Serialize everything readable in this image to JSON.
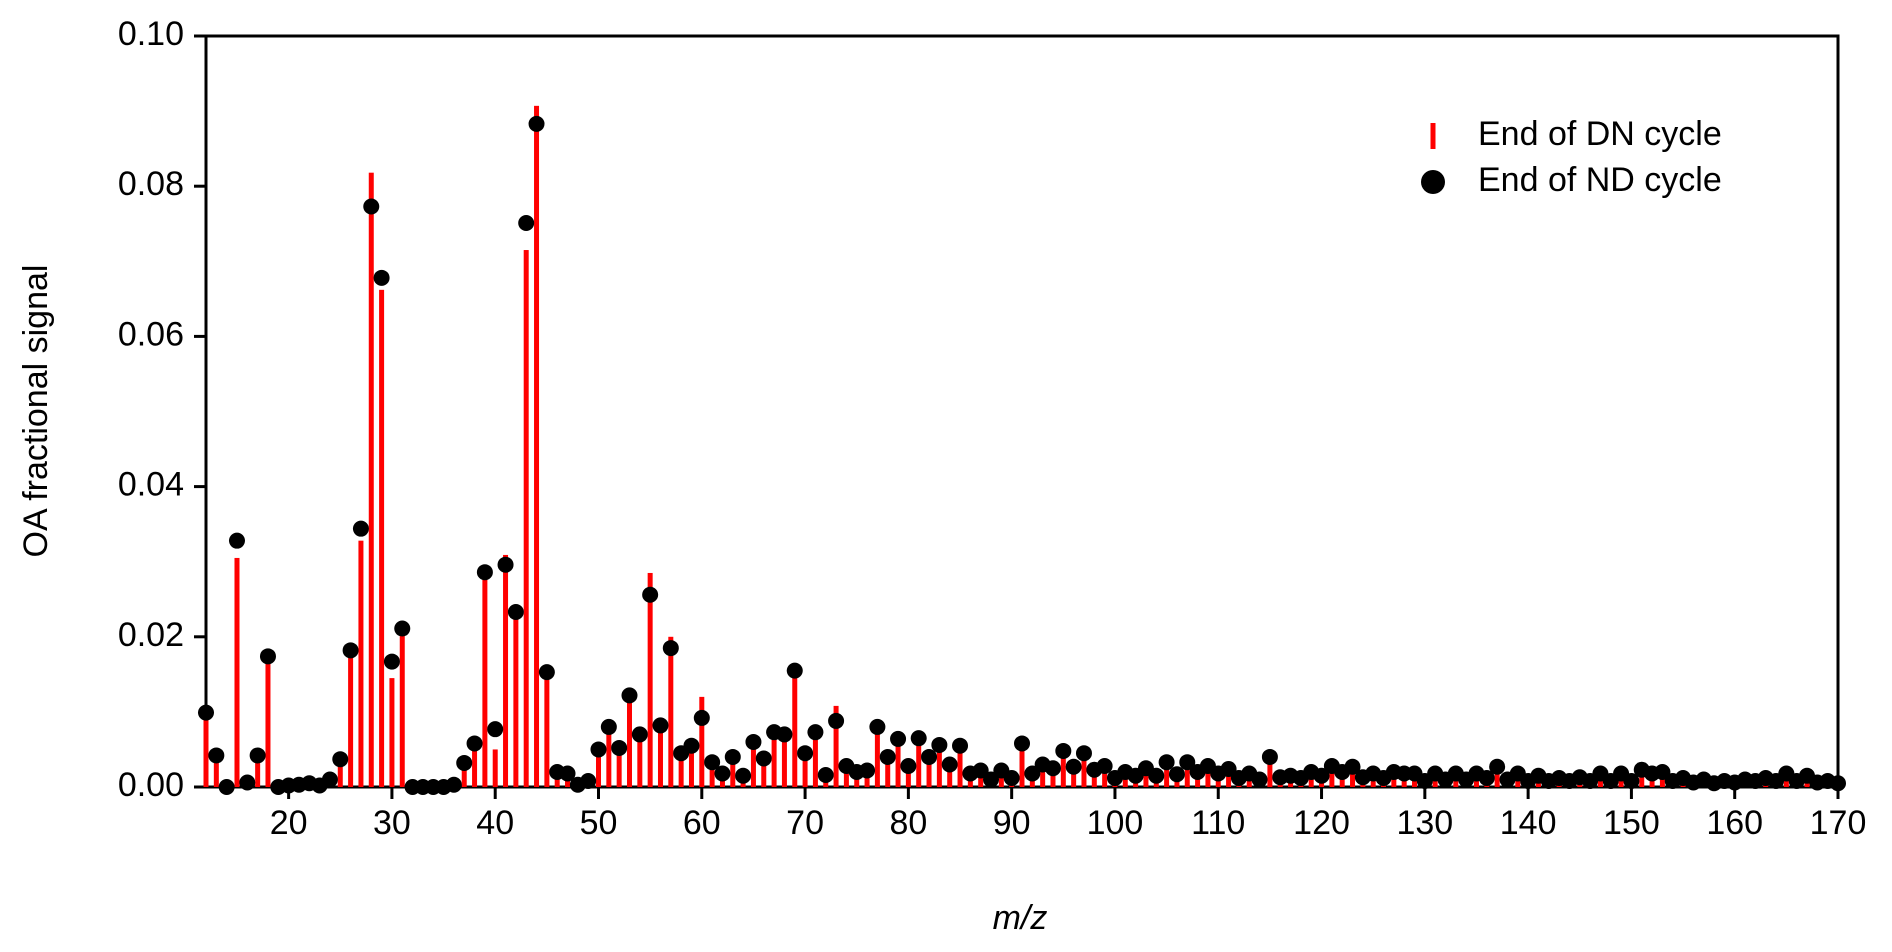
{
  "chart_data": {
    "type": "stem",
    "xlabel": "m/z",
    "ylabel": "OA fractional signal",
    "xlim": [
      12,
      170
    ],
    "ylim": [
      0,
      0.1
    ],
    "xticks": [
      20,
      30,
      40,
      50,
      60,
      70,
      80,
      90,
      100,
      110,
      120,
      130,
      140,
      150,
      160,
      170
    ],
    "yticks": [
      {
        "value": 0,
        "label": "0.00"
      },
      {
        "value": 0.02,
        "label": "0.02"
      },
      {
        "value": 0.04,
        "label": "0.04"
      },
      {
        "value": 0.06,
        "label": "0.06"
      },
      {
        "value": 0.08,
        "label": "0.08"
      },
      {
        "value": 0.1,
        "label": "0.10"
      }
    ],
    "legend": "upper right",
    "x": [
      12,
      13,
      14,
      15,
      16,
      17,
      18,
      19,
      20,
      21,
      22,
      23,
      24,
      25,
      26,
      27,
      28,
      29,
      30,
      31,
      32,
      33,
      34,
      35,
      36,
      37,
      38,
      39,
      40,
      41,
      42,
      43,
      44,
      45,
      46,
      47,
      48,
      49,
      50,
      51,
      52,
      53,
      54,
      55,
      56,
      57,
      58,
      59,
      60,
      61,
      62,
      63,
      64,
      65,
      66,
      67,
      68,
      69,
      70,
      71,
      72,
      73,
      74,
      75,
      76,
      77,
      78,
      79,
      80,
      81,
      82,
      83,
      84,
      85,
      86,
      87,
      88,
      89,
      90,
      91,
      92,
      93,
      94,
      95,
      96,
      97,
      98,
      99,
      100,
      101,
      102,
      103,
      104,
      105,
      106,
      107,
      108,
      109,
      110,
      111,
      112,
      113,
      114,
      115,
      116,
      117,
      118,
      119,
      120,
      121,
      122,
      123,
      124,
      125,
      126,
      127,
      128,
      129,
      130,
      131,
      132,
      133,
      134,
      135,
      136,
      137,
      138,
      139,
      140,
      141,
      142,
      143,
      144,
      145,
      146,
      147,
      148,
      149,
      150,
      151,
      152,
      153,
      154,
      155,
      156,
      157,
      158,
      159,
      160,
      161,
      162,
      163,
      164,
      165,
      166,
      167,
      168,
      169,
      170
    ],
    "series": [
      {
        "name": "End of DN cycle",
        "color": "#ff0000",
        "marker": "stem",
        "values": [
          0.0099,
          0.0042,
          0,
          0.0305,
          0.0006,
          0.0042,
          0.018,
          0,
          0.0002,
          0.0003,
          0.0005,
          0.0002,
          0.001,
          0.0037,
          0.0182,
          0.0328,
          0.0818,
          0.0662,
          0.0145,
          0.0211,
          0,
          0,
          0,
          0,
          0.0003,
          0.0032,
          0.005,
          0.028,
          0.005,
          0.0309,
          0.0233,
          0.0715,
          0.0907,
          0.0153,
          0.002,
          0.0018,
          0.0003,
          0.0008,
          0.005,
          0.008,
          0.0052,
          0.0122,
          0.007,
          0.0285,
          0.0082,
          0.02,
          0.0045,
          0.0055,
          0.012,
          0.0033,
          0.0018,
          0.004,
          0.0015,
          0.006,
          0.0038,
          0.0073,
          0.007,
          0.0155,
          0.0045,
          0.0073,
          0.0016,
          0.0108,
          0.0028,
          0.002,
          0.0022,
          0.008,
          0.004,
          0.0064,
          0.0028,
          0.0065,
          0.004,
          0.0056,
          0.003,
          0.0055,
          0.0018,
          0.0022,
          0.001,
          0.0022,
          0.0012,
          0.0058,
          0.0018,
          0.003,
          0.0025,
          0.0048,
          0.0027,
          0.0045,
          0.0023,
          0.0028,
          0.0012,
          0.002,
          0.0015,
          0.0025,
          0.0015,
          0.0033,
          0.0017,
          0.0033,
          0.002,
          0.0028,
          0.0018,
          0.0024,
          0.0012,
          0.0018,
          0.001,
          0.004,
          0.0013,
          0.0015,
          0.0012,
          0.002,
          0.0015,
          0.0028,
          0.002,
          0.0027,
          0.0013,
          0.0018,
          0.0012,
          0.002,
          0.0018,
          0.0018,
          0.0008,
          0.0018,
          0.001,
          0.0018,
          0.001,
          0.0018,
          0.0012,
          0.0027,
          0.001,
          0.0018,
          0.0008,
          0.0015,
          0.0008,
          0.0012,
          0.0008,
          0.0013,
          0.0008,
          0.0018,
          0.0008,
          0.0018,
          0.0008,
          0.0023,
          0.0018,
          0.002,
          0.0008,
          0.0012,
          0.0006,
          0.001,
          0.0005,
          0.0008,
          0.0006,
          0.001,
          0.0008,
          0.0012,
          0.0008,
          0.0018,
          0.0008,
          0.0015,
          0.0006,
          0.0008,
          0.0005
        ]
      },
      {
        "name": "End of ND cycle",
        "color": "#000000",
        "marker": "dot",
        "values": [
          0.0099,
          0.0042,
          0,
          0.0328,
          0.0006,
          0.0042,
          0.0174,
          0,
          0.0002,
          0.0003,
          0.0005,
          0.0002,
          0.001,
          0.0037,
          0.0182,
          0.0344,
          0.0773,
          0.0678,
          0.0167,
          0.0211,
          0,
          0,
          0,
          0,
          0.0003,
          0.0032,
          0.0058,
          0.0286,
          0.0077,
          0.0296,
          0.0233,
          0.0751,
          0.0883,
          0.0153,
          0.002,
          0.0018,
          0.0003,
          0.0008,
          0.005,
          0.008,
          0.0052,
          0.0122,
          0.007,
          0.0256,
          0.0082,
          0.0185,
          0.0045,
          0.0055,
          0.0092,
          0.0033,
          0.0018,
          0.004,
          0.0015,
          0.006,
          0.0038,
          0.0073,
          0.007,
          0.0155,
          0.0045,
          0.0073,
          0.0016,
          0.0088,
          0.0028,
          0.002,
          0.0022,
          0.008,
          0.004,
          0.0064,
          0.0028,
          0.0065,
          0.004,
          0.0056,
          0.003,
          0.0055,
          0.0018,
          0.0022,
          0.001,
          0.0022,
          0.0012,
          0.0058,
          0.0018,
          0.003,
          0.0025,
          0.0048,
          0.0027,
          0.0045,
          0.0023,
          0.0028,
          0.0012,
          0.002,
          0.0015,
          0.0025,
          0.0015,
          0.0033,
          0.0017,
          0.0033,
          0.002,
          0.0028,
          0.0018,
          0.0024,
          0.0012,
          0.0018,
          0.001,
          0.004,
          0.0013,
          0.0015,
          0.0012,
          0.002,
          0.0015,
          0.0028,
          0.002,
          0.0027,
          0.0013,
          0.0018,
          0.0012,
          0.002,
          0.0018,
          0.0018,
          0.0008,
          0.0018,
          0.001,
          0.0018,
          0.001,
          0.0018,
          0.0012,
          0.0027,
          0.001,
          0.0018,
          0.0008,
          0.0015,
          0.0008,
          0.0012,
          0.0008,
          0.0013,
          0.0008,
          0.0018,
          0.0008,
          0.0018,
          0.0008,
          0.0023,
          0.0018,
          0.002,
          0.0008,
          0.0012,
          0.0006,
          0.001,
          0.0005,
          0.0008,
          0.0006,
          0.001,
          0.0008,
          0.0012,
          0.0008,
          0.0018,
          0.0008,
          0.0015,
          0.0006,
          0.0008,
          0.0005
        ]
      }
    ]
  }
}
